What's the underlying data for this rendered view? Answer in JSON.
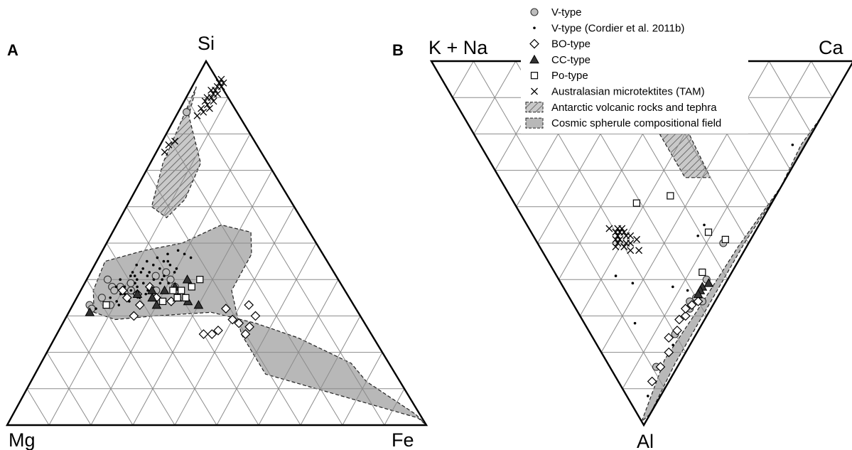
{
  "chart_data": [
    {
      "panel": "A",
      "type": "ternary-scatter",
      "vertices": {
        "top": "Si",
        "left": "Mg",
        "right": "Fe"
      },
      "grid": true,
      "grid_divisions": 10,
      "fields": [
        {
          "name": "Antarctic volcanic rocks and tephra",
          "style": "hatched",
          "points": [
            [
              0.93,
              0.01
            ],
            [
              0.85,
              0.03
            ],
            [
              0.72,
              0.12
            ],
            [
              0.62,
              0.13
            ],
            [
              0.57,
              0.11
            ],
            [
              0.6,
              0.06
            ],
            [
              0.72,
              0.03
            ]
          ]
        },
        {
          "name": "Cosmic spherule compositional field",
          "style": "gray",
          "points": [
            [
              0.5,
              0.18
            ],
            [
              0.55,
              0.25
            ],
            [
              0.53,
              0.33
            ],
            [
              0.47,
              0.36
            ],
            [
              0.37,
              0.36
            ],
            [
              0.25,
              0.44
            ],
            [
              0.14,
              0.55
            ],
            [
              0.02,
              0.97
            ],
            [
              0.0,
              1.0
            ],
            [
              0.03,
              0.96
            ],
            [
              0.12,
              0.8
            ],
            [
              0.17,
              0.74
            ],
            [
              0.24,
              0.58
            ],
            [
              0.28,
              0.46
            ],
            [
              0.31,
              0.34
            ],
            [
              0.3,
              0.21
            ],
            [
              0.29,
              0.12
            ],
            [
              0.31,
              0.06
            ],
            [
              0.37,
              0.03
            ],
            [
              0.45,
              0.02
            ],
            [
              0.48,
              0.1
            ]
          ]
        }
      ],
      "series": [
        {
          "name": "V-type",
          "marker": "circle-gray",
          "points": [
            [
              0.86,
              0.02
            ],
            [
              0.4,
              0.05
            ],
            [
              0.38,
              0.07
            ],
            [
              0.37,
              0.08
            ],
            [
              0.38,
              0.09
            ],
            [
              0.35,
              0.06
            ],
            [
              0.33,
              0.04
            ],
            [
              0.32,
              0.05
            ],
            [
              0.39,
              0.11
            ],
            [
              0.41,
              0.16
            ],
            [
              0.4,
              0.2
            ],
            [
              0.37,
              0.18
            ],
            [
              0.38,
              0.22
            ],
            [
              0.42,
              0.18
            ],
            [
              0.33,
              0.09
            ],
            [
              0.37,
              0.12
            ]
          ]
        },
        {
          "name": "V-type (Cordier et al. 2011b)",
          "marker": "dot",
          "points": [
            [
              0.48,
              0.18
            ],
            [
              0.47,
              0.2
            ],
            [
              0.46,
              0.22
            ],
            [
              0.45,
              0.17
            ],
            [
              0.44,
              0.18
            ],
            [
              0.43,
              0.16
            ],
            [
              0.42,
              0.14
            ],
            [
              0.42,
              0.12
            ],
            [
              0.41,
              0.1
            ],
            [
              0.41,
              0.14
            ],
            [
              0.4,
              0.16
            ],
            [
              0.4,
              0.18
            ],
            [
              0.39,
              0.14
            ],
            [
              0.39,
              0.12
            ],
            [
              0.38,
              0.1
            ],
            [
              0.38,
              0.13
            ],
            [
              0.37,
              0.12
            ],
            [
              0.36,
              0.14
            ],
            [
              0.36,
              0.1
            ],
            [
              0.35,
              0.12
            ],
            [
              0.35,
              0.08
            ],
            [
              0.34,
              0.1
            ],
            [
              0.33,
              0.08
            ],
            [
              0.32,
              0.06
            ],
            [
              0.31,
              0.05
            ],
            [
              0.44,
              0.14
            ],
            [
              0.45,
              0.16
            ],
            [
              0.43,
              0.2
            ],
            [
              0.37,
              0.16
            ],
            [
              0.4,
              0.12
            ],
            [
              0.41,
              0.18
            ],
            [
              0.39,
              0.18
            ],
            [
              0.36,
              0.11
            ],
            [
              0.34,
              0.13
            ],
            [
              0.43,
              0.12
            ],
            [
              0.44,
              0.1
            ],
            [
              0.42,
              0.1
            ],
            [
              0.4,
              0.08
            ],
            [
              0.38,
              0.16
            ],
            [
              0.35,
              0.15
            ],
            [
              0.46,
              0.14
            ],
            [
              0.47,
              0.16
            ],
            [
              0.42,
              0.2
            ],
            [
              0.39,
              0.2
            ],
            [
              0.37,
              0.1
            ],
            [
              0.36,
              0.16
            ],
            [
              0.41,
              0.11
            ],
            [
              0.38,
              0.08
            ],
            [
              0.33,
              0.11
            ],
            [
              0.45,
              0.12
            ]
          ]
        },
        {
          "name": "BO-type",
          "marker": "diamond-open",
          "points": [
            [
              0.37,
              0.1
            ],
            [
              0.36,
              0.14
            ],
            [
              0.33,
              0.16
            ],
            [
              0.3,
              0.16
            ],
            [
              0.32,
              0.37
            ],
            [
              0.33,
              0.42
            ],
            [
              0.29,
              0.4
            ],
            [
              0.28,
              0.42
            ],
            [
              0.3,
              0.45
            ],
            [
              0.27,
              0.45
            ],
            [
              0.25,
              0.45
            ],
            [
              0.25,
              0.35
            ],
            [
              0.26,
              0.38
            ],
            [
              0.25,
              0.37
            ],
            [
              0.34,
              0.23
            ],
            [
              0.35,
              0.19
            ],
            [
              0.38,
              0.16
            ],
            [
              0.35,
              0.12
            ]
          ]
        },
        {
          "name": "CC-type",
          "marker": "triangle-filled",
          "points": [
            [
              0.36,
              0.14
            ],
            [
              0.37,
              0.17
            ],
            [
              0.35,
              0.18
            ],
            [
              0.33,
              0.2
            ],
            [
              0.38,
              0.22
            ],
            [
              0.4,
              0.24
            ],
            [
              0.35,
              0.24
            ],
            [
              0.34,
              0.27
            ],
            [
              0.33,
              0.3
            ],
            [
              0.31,
              0.05
            ],
            [
              0.37,
              0.2
            ]
          ]
        },
        {
          "name": "Po-type",
          "marker": "square-open",
          "points": [
            [
              0.4,
              0.27
            ],
            [
              0.38,
              0.26
            ],
            [
              0.35,
              0.26
            ],
            [
              0.35,
              0.24
            ],
            [
              0.37,
              0.24
            ],
            [
              0.33,
              0.08
            ],
            [
              0.37,
              0.22
            ],
            [
              0.34,
              0.21
            ]
          ]
        },
        {
          "name": "Australasian microtektites (TAM)",
          "marker": "x",
          "points": [
            [
              0.88,
              0.06
            ],
            [
              0.89,
              0.07
            ],
            [
              0.9,
              0.06
            ],
            [
              0.91,
              0.06
            ],
            [
              0.92,
              0.06
            ],
            [
              0.93,
              0.06
            ],
            [
              0.94,
              0.06
            ],
            [
              0.93,
              0.07
            ],
            [
              0.91,
              0.07
            ],
            [
              0.87,
              0.05
            ],
            [
              0.85,
              0.05
            ],
            [
              0.86,
              0.06
            ],
            [
              0.9,
              0.05
            ],
            [
              0.92,
              0.05
            ],
            [
              0.94,
              0.07
            ],
            [
              0.95,
              0.06
            ],
            [
              0.89,
              0.05
            ],
            [
              0.87,
              0.07
            ],
            [
              0.77,
              0.02
            ],
            [
              0.78,
              0.03
            ],
            [
              0.75,
              0.02
            ]
          ]
        }
      ]
    },
    {
      "panel": "B",
      "type": "ternary-scatter",
      "vertices": {
        "top_left": "K + Na",
        "top_right": "Ca",
        "bottom": "Al"
      },
      "grid": true,
      "grid_divisions": 10,
      "fields": [
        {
          "name": "Antarctic volcanic rocks and tephra",
          "style": "hatched",
          "points": [
            [
              0.53,
              0.0
            ],
            [
              0.48,
              0.08
            ],
            [
              0.44,
              0.2
            ],
            [
              0.44,
              0.32
            ],
            [
              0.5,
              0.32
            ],
            [
              0.51,
              0.2
            ],
            [
              0.53,
              0.07
            ]
          ]
        },
        {
          "name": "Cosmic spherule compositional field",
          "style": "gray",
          "points": [
            [
              0.85,
              0.15
            ],
            [
              0.8,
              0.2
            ],
            [
              0.66,
              0.34
            ],
            [
              0.47,
              0.51
            ],
            [
              0.28,
              0.69
            ],
            [
              0.14,
              0.82
            ],
            [
              0.0,
              0.99
            ],
            [
              0.03,
              0.97
            ],
            [
              0.16,
              0.83
            ],
            [
              0.31,
              0.68
            ],
            [
              0.49,
              0.5
            ],
            [
              0.65,
              0.35
            ],
            [
              0.76,
              0.23
            ]
          ]
        }
      ],
      "series": [
        {
          "name": "V-type",
          "marker": "circle-gray",
          "points": [
            [
              0.44,
              0.5
            ],
            [
              0.35,
              0.6
            ],
            [
              0.27,
              0.68
            ],
            [
              0.2,
              0.75
            ],
            [
              0.11,
              0.84
            ],
            [
              0.28,
              0.66
            ],
            [
              0.3,
              0.65
            ],
            [
              0.31,
              0.66
            ]
          ]
        },
        {
          "name": "V-type (Cordier et al. 2011b)",
          "marker": "dot",
          "points": [
            [
              0.74,
              0.23
            ],
            [
              0.42,
              0.45
            ],
            [
              0.39,
              0.48
            ],
            [
              0.26,
              0.62
            ],
            [
              0.17,
              0.61
            ],
            [
              0.14,
              0.59
            ],
            [
              0.12,
              0.72
            ],
            [
              0.29,
              0.63
            ],
            [
              0.18,
              0.78
            ],
            [
              0.05,
              0.92
            ]
          ]
        },
        {
          "name": "BO-type",
          "marker": "diamond-open",
          "points": [
            [
              0.3,
              0.66
            ],
            [
              0.28,
              0.67
            ],
            [
              0.25,
              0.7
            ],
            [
              0.21,
              0.74
            ],
            [
              0.16,
              0.8
            ],
            [
              0.12,
              0.84
            ],
            [
              0.08,
              0.88
            ],
            [
              0.18,
              0.76
            ],
            [
              0.23,
              0.71
            ],
            [
              0.26,
              0.68
            ]
          ]
        },
        {
          "name": "CC-type",
          "marker": "triangle-filled",
          "points": [
            [
              0.35,
              0.61
            ],
            [
              0.33,
              0.62
            ],
            [
              0.32,
              0.63
            ],
            [
              0.31,
              0.64
            ]
          ]
        },
        {
          "name": "Po-type",
          "marker": "square-open",
          "points": [
            [
              0.42,
              0.47
            ],
            [
              0.45,
              0.49
            ],
            [
              0.38,
              0.37
            ],
            [
              0.35,
              0.58
            ],
            [
              0.29,
              0.39
            ]
          ]
        },
        {
          "name": "Australasian microtektites (TAM)",
          "marker": "x",
          "points": [
            [
              0.21,
              0.47
            ],
            [
              0.2,
              0.49
            ],
            [
              0.22,
              0.48
            ],
            [
              0.21,
              0.5
            ],
            [
              0.2,
              0.48
            ],
            [
              0.19,
              0.49
            ],
            [
              0.22,
              0.5
            ],
            [
              0.23,
              0.48
            ],
            [
              0.21,
              0.46
            ],
            [
              0.2,
              0.51
            ],
            [
              0.22,
              0.47
            ],
            [
              0.19,
              0.5
            ],
            [
              0.23,
              0.52
            ],
            [
              0.24,
              0.49
            ],
            [
              0.18,
              0.51
            ],
            [
              0.2,
              0.47
            ],
            [
              0.22,
              0.46
            ],
            [
              0.21,
              0.52
            ],
            [
              0.19,
              0.46
            ]
          ]
        }
      ]
    }
  ],
  "legend": {
    "placement": "top-center",
    "items": [
      {
        "label": "V-type",
        "marker": "circle-gray"
      },
      {
        "label": "V-type (Cordier et al. 2011b)",
        "marker": "dot"
      },
      {
        "label": "BO-type",
        "marker": "diamond-open"
      },
      {
        "label": "CC-type",
        "marker": "triangle-filled"
      },
      {
        "label": "Po-type",
        "marker": "square-open"
      },
      {
        "label": "Australasian microtektites (TAM)",
        "marker": "x"
      },
      {
        "label": "Antarctic volcanic rocks and tephra",
        "marker": "hatched-patch"
      },
      {
        "label": "Cosmic spherule compositional field",
        "marker": "gray-patch"
      }
    ]
  },
  "colors": {
    "grid": "#8c8c8c",
    "frame": "#000000",
    "field_gray": "#b8b8b8",
    "marker_gray": "#bdbdbd"
  }
}
